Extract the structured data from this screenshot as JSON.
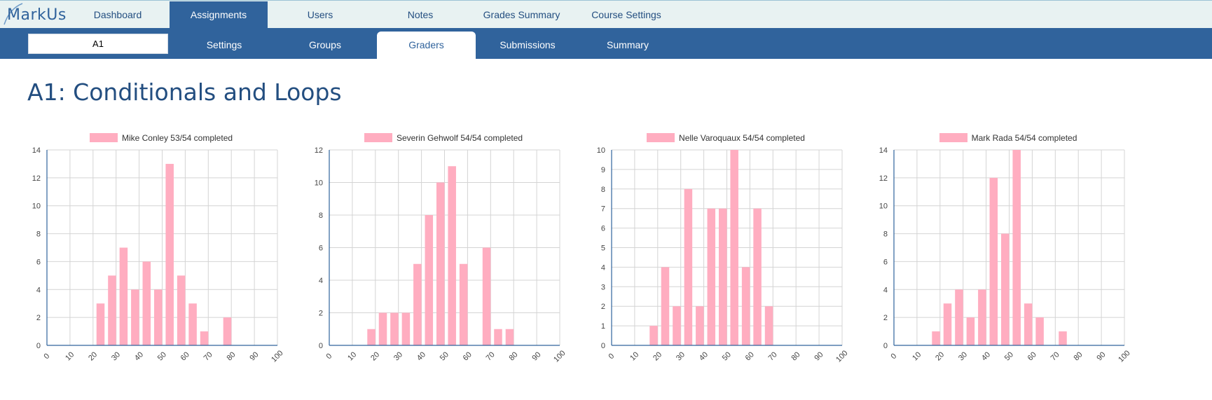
{
  "app": {
    "logo_text": "MarkUs"
  },
  "nav": {
    "tabs": [
      {
        "label": "Dashboard"
      },
      {
        "label": "Assignments"
      },
      {
        "label": "Users"
      },
      {
        "label": "Notes"
      },
      {
        "label": "Grades Summary"
      },
      {
        "label": "Course Settings"
      }
    ],
    "active": "Assignments"
  },
  "subnav": {
    "assignment_selected": "A1",
    "tabs": [
      {
        "label": "Settings"
      },
      {
        "label": "Groups"
      },
      {
        "label": "Graders"
      },
      {
        "label": "Submissions"
      },
      {
        "label": "Summary"
      }
    ],
    "active": "Graders"
  },
  "page": {
    "title": "A1: Conditionals and Loops"
  },
  "colors": {
    "bar": "#ffadc0",
    "grid": "#d4d4d4",
    "axis": "#30639c"
  },
  "chart_data": [
    {
      "type": "bar",
      "legend": "Mike Conley 53/54 completed",
      "x_ticks": [
        0,
        10,
        20,
        30,
        40,
        50,
        60,
        70,
        80,
        90,
        100
      ],
      "bin_width": 5,
      "x": [
        25,
        30,
        35,
        40,
        45,
        50,
        55,
        60,
        65,
        70,
        80
      ],
      "values": [
        3,
        5,
        7,
        4,
        6,
        4,
        13,
        5,
        3,
        1,
        2
      ],
      "ylim": [
        0,
        14
      ],
      "y_ticks": [
        0,
        2,
        4,
        6,
        8,
        10,
        12,
        14
      ]
    },
    {
      "type": "bar",
      "legend": "Severin Gehwolf 54/54 completed",
      "x_ticks": [
        0,
        10,
        20,
        30,
        40,
        50,
        60,
        70,
        80,
        90,
        100
      ],
      "bin_width": 5,
      "x": [
        20,
        25,
        30,
        35,
        40,
        45,
        50,
        55,
        60,
        70,
        75,
        80
      ],
      "values": [
        1,
        2,
        2,
        2,
        5,
        8,
        10,
        11,
        5,
        6,
        1,
        1
      ],
      "ylim": [
        0,
        12
      ],
      "y_ticks": [
        0,
        2,
        4,
        6,
        8,
        10,
        12
      ]
    },
    {
      "type": "bar",
      "legend": "Nelle Varoquaux 54/54 completed",
      "x_ticks": [
        0,
        10,
        20,
        30,
        40,
        50,
        60,
        70,
        80,
        90,
        100
      ],
      "bin_width": 5,
      "x": [
        20,
        25,
        30,
        35,
        40,
        45,
        50,
        55,
        60,
        65,
        70
      ],
      "values": [
        1,
        4,
        2,
        8,
        2,
        7,
        7,
        10,
        4,
        7,
        2
      ],
      "ylim": [
        0,
        10
      ],
      "y_ticks": [
        0,
        1,
        2,
        3,
        4,
        5,
        6,
        7,
        8,
        9,
        10
      ]
    },
    {
      "type": "bar",
      "legend": "Mark Rada 54/54 completed",
      "x_ticks": [
        0,
        10,
        20,
        30,
        40,
        50,
        60,
        70,
        80,
        90,
        100
      ],
      "bin_width": 5,
      "x": [
        20,
        25,
        30,
        35,
        40,
        45,
        50,
        55,
        60,
        65,
        75
      ],
      "values": [
        1,
        3,
        4,
        2,
        4,
        12,
        8,
        14,
        3,
        2,
        1
      ],
      "ylim": [
        0,
        14
      ],
      "y_ticks": [
        0,
        2,
        4,
        6,
        8,
        10,
        12,
        14
      ]
    }
  ]
}
